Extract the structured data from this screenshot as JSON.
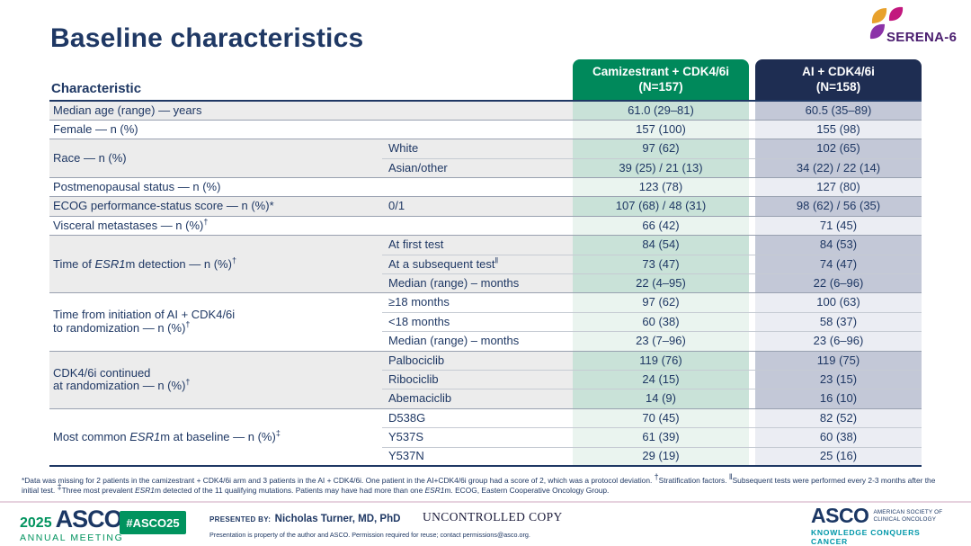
{
  "slide": {
    "title": "Baseline characteristics"
  },
  "logo": {
    "serena": {
      "text": "SERENA-6"
    },
    "colors": {
      "petal_orange": "#E8A12C",
      "petal_magenta": "#C2187E",
      "petal_purple": "#8B32A8",
      "serena_purple": "#4A1D6F"
    }
  },
  "colors": {
    "navy_text": "#1F3864",
    "cam_header_green": "#00895B",
    "ai_header_navy": "#1E2D52",
    "cam_tint_dark": "#C9E2D8",
    "cam_tint_light": "#EAF4EF",
    "ai_tint_dark": "#C3C8D7",
    "ai_tint_light": "#EBEDF3",
    "label_gray": "#ECECEC",
    "footer_green": "#00935E",
    "tagline_teal": "#0097A9"
  },
  "table": {
    "characteristic_header": "Characteristic",
    "columns": [
      {
        "name": "Camizestrant + CDK4/6i",
        "n": "(N=157)"
      },
      {
        "name": "AI + CDK4/6i",
        "n": "(N=158)"
      }
    ],
    "groups": [
      {
        "label": "Median age (range) — years",
        "rows": [
          {
            "sub": "",
            "cam": "61.0 (29–81)",
            "ai": "60.5 (35–89)"
          }
        ]
      },
      {
        "label": "Female — n (%)",
        "rows": [
          {
            "sub": "",
            "cam": "157 (100)",
            "ai": "155 (98)"
          }
        ]
      },
      {
        "label": "Race — n (%)",
        "rows": [
          {
            "sub": "White",
            "cam": "97 (62)",
            "ai": "102 (65)"
          },
          {
            "sub": "Asian/other",
            "cam": "39 (25) / 21 (13)",
            "ai": "34 (22) / 22 (14)"
          }
        ]
      },
      {
        "label": "Postmenopausal status — n (%)",
        "rows": [
          {
            "sub": "",
            "cam": "123 (78)",
            "ai": "127 (80)"
          }
        ]
      },
      {
        "label": "ECOG performance-status score — n (%)*",
        "rows": [
          {
            "sub": "0/1",
            "cam": "107 (68) / 48 (31)",
            "ai": "98 (62) / 56 (35)"
          }
        ]
      },
      {
        "label": "Visceral metastases — n (%)^†",
        "rows": [
          {
            "sub": "",
            "cam": "66 (42)",
            "ai": "71 (45)"
          }
        ]
      },
      {
        "label": "Time of _ESR1_m detection — n (%)^†",
        "rows": [
          {
            "sub": "At first test",
            "cam": "84 (54)",
            "ai": "84 (53)"
          },
          {
            "sub": "At a subsequent test^‖",
            "cam": "73 (47)",
            "ai": "74 (47)"
          },
          {
            "sub": "Median (range) – months",
            "cam": "22 (4–95)",
            "ai": "22 (6–96)"
          }
        ]
      },
      {
        "label": "Time from initiation of AI + CDK4/6i\nto randomization — n (%)^†",
        "rows": [
          {
            "sub": "≥18 months",
            "cam": "97 (62)",
            "ai": "100 (63)"
          },
          {
            "sub": "<18 months",
            "cam": "60 (38)",
            "ai": "58 (37)"
          },
          {
            "sub": "Median (range) – months",
            "cam": "23 (7–96)",
            "ai": "23 (6–96)"
          }
        ]
      },
      {
        "label": "CDK4/6i continued\nat randomization — n (%)^†",
        "rows": [
          {
            "sub": "Palbociclib",
            "cam": "119 (76)",
            "ai": "119 (75)"
          },
          {
            "sub": "Ribociclib",
            "cam": "24 (15)",
            "ai": "23 (15)"
          },
          {
            "sub": "Abemaciclib",
            "cam": "14 (9)",
            "ai": "16 (10)"
          }
        ]
      },
      {
        "label": "Most common _ESR1_m at baseline — n (%)^‡",
        "rows": [
          {
            "sub": "D538G",
            "cam": "70 (45)",
            "ai": "82 (52)"
          },
          {
            "sub": "Y537S",
            "cam": "61 (39)",
            "ai": "60 (38)"
          },
          {
            "sub": "Y537N",
            "cam": "29 (19)",
            "ai": "25 (16)"
          }
        ]
      }
    ]
  },
  "footnote": {
    "text": "*Data was missing for 2 patients in the camizestrant + CDK4/6i arm and 3 patients in the AI + CDK4/6i. One patient in the AI+CDK4/6i group had a score of 2, which was a protocol deviation. ^†Stratification factors. ^‖Subsequent tests were performed every 2-3 months after the initial test. ^‡Three most prevalent _ESR1_m detected of the 11 qualifying mutations. Patients may have had more than one _ESR1_m. ECOG, Eastern Cooperative Oncology Group."
  },
  "footer": {
    "meeting": {
      "year": "2025",
      "org": "ASCO",
      "sub": "ANNUAL MEETING"
    },
    "badge": "#ASCO25",
    "presented_by_label": "PRESENTED BY:",
    "presenter": "Nicholas Turner, MD, PhD",
    "uncontrolled": "UNCONTROLLED COPY",
    "permission": "Presentation is property of the author and ASCO. Permission required for reuse; contact permissions@asco.org.",
    "asco_logo": {
      "name": "ASCO",
      "society_line1": "AMERICAN SOCIETY OF",
      "society_line2": "CLINICAL ONCOLOGY",
      "tagline": "KNOWLEDGE CONQUERS CANCER"
    }
  }
}
